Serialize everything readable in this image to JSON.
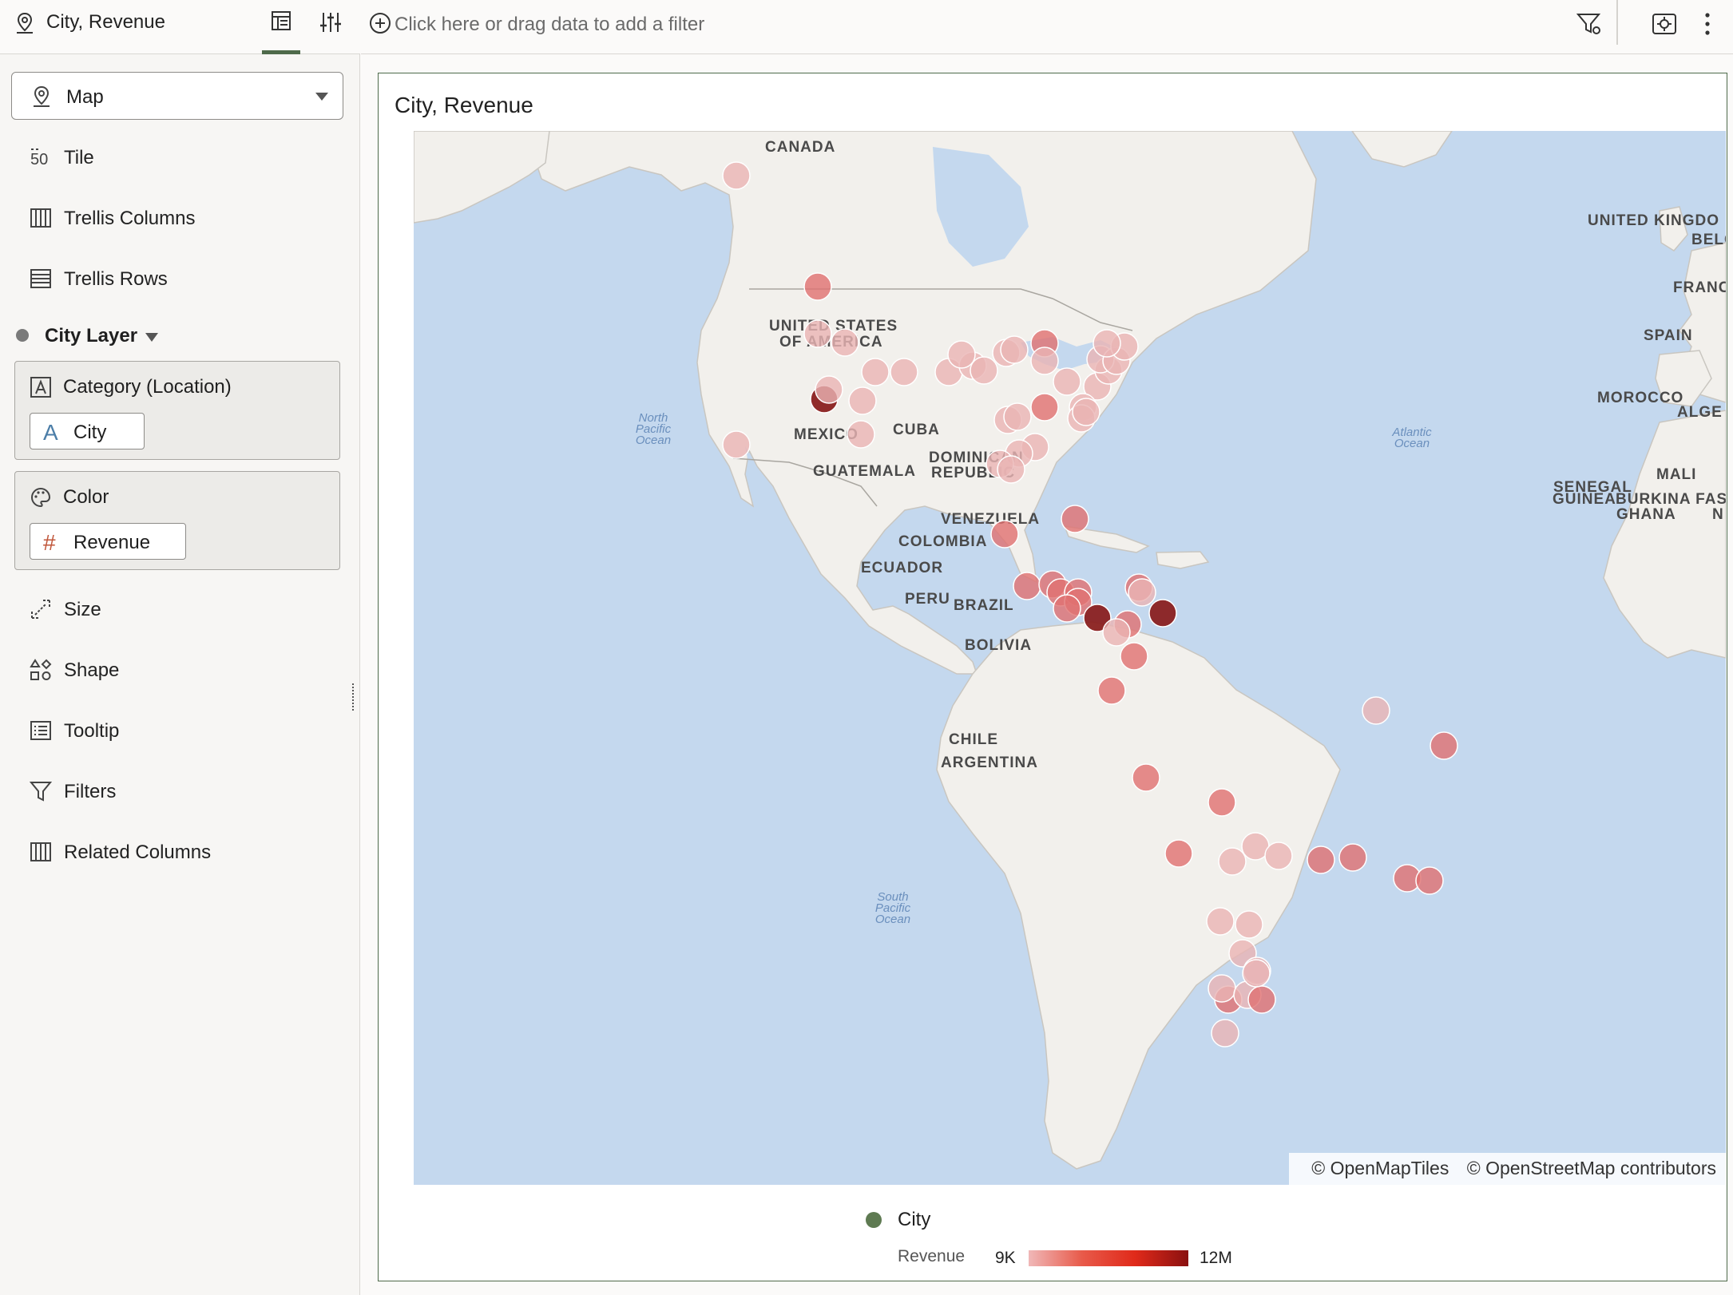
{
  "header": {
    "title": "City, Revenue"
  },
  "left_panel": {
    "chart_type": "Map",
    "rows": [
      "Tile",
      "Trellis Columns",
      "Trellis Rows"
    ],
    "layer_name": "City Layer",
    "category_well": {
      "label": "Category (Location)",
      "pill": "City",
      "pill_icon": "A"
    },
    "color_well": {
      "label": "Color",
      "pill": "Revenue",
      "pill_icon": "#"
    },
    "lower_rows": [
      "Size",
      "Shape",
      "Tooltip",
      "Filters",
      "Related Columns"
    ]
  },
  "filter_bar": {
    "placeholder": "Click here or drag data to add a filter"
  },
  "viz": {
    "title": "City, Revenue",
    "attribution": [
      "© OpenMapTiles",
      "© OpenStreetMap contributors"
    ],
    "map_labels": [
      "CANADA",
      "UNITED STATES",
      "OF AMERICA",
      "MEXICO",
      "CUBA",
      "DOMINICAN",
      "REPUBLIC",
      "GUATEMALA",
      "VENEZUELA",
      "COLOMBIA",
      "ECUADOR",
      "PERU",
      "BRAZIL",
      "BOLIVIA",
      "CHILE",
      "ARGENTINA",
      "UNITED KINGDO",
      "BELG",
      "FRANC",
      "SPAIN",
      "MOROCCO",
      "ALGE",
      "SENEGAL",
      "MALI",
      "GUINEA",
      "BURKINA FAS",
      "GHANA",
      "N"
    ],
    "ocean_labels": [
      "North",
      "Pacific",
      "Ocean",
      "South",
      "Pacific",
      "Ocean",
      "Atlantic",
      "Ocean"
    ]
  },
  "legend": {
    "layer": "City",
    "measure": "Revenue",
    "min": "9K",
    "max": "12M"
  },
  "colors": {
    "accent": "#4e6a4a",
    "point_light": "#eab4b4",
    "point_mid": "#e07070",
    "point_dark": "#8a2020"
  }
}
